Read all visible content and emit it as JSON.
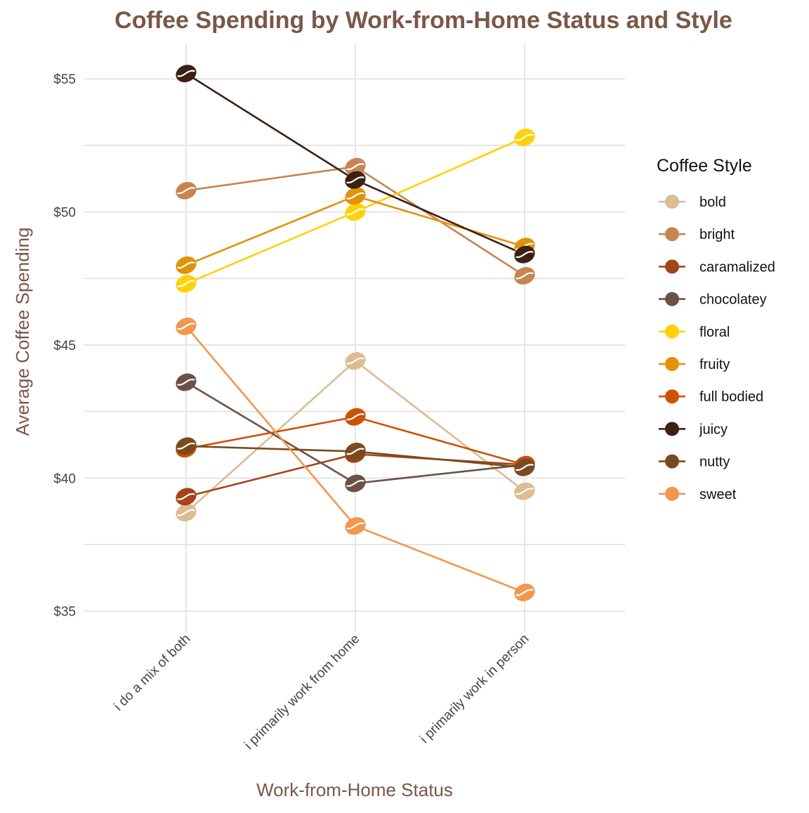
{
  "colors": {
    "title": "#7A5748",
    "axis_title": "#7A5748",
    "grid": "#E5E5E5",
    "bean_crease": "#FFFFFF"
  },
  "chart_data": {
    "type": "line",
    "title": "Coffee Spending by Work-from-Home Status and Style",
    "xlabel": "Work-from-Home Status",
    "ylabel": "Average Coffee Spending",
    "categories": [
      "i do a mix of both",
      "i primarily work from home",
      "i primarily work in person"
    ],
    "ylim": [
      34.2,
      56.3
    ],
    "y_ticks": [
      35,
      40,
      45,
      50,
      55
    ],
    "y_tick_labels": [
      "$35",
      "$40",
      "$45",
      "$50",
      "$55"
    ],
    "grid": true,
    "legend_title": "Coffee Style",
    "legend_position": "right",
    "marker": "coffee-bean",
    "series": [
      {
        "name": "bold",
        "color": "#DDBB93",
        "values": [
          38.7,
          44.4,
          39.5
        ]
      },
      {
        "name": "bright",
        "color": "#C68551",
        "values": [
          50.8,
          51.7,
          47.6
        ]
      },
      {
        "name": "caramalized",
        "color": "#A3441B",
        "values": [
          39.3,
          40.9,
          40.5
        ]
      },
      {
        "name": "chocolatey",
        "color": "#6C5147",
        "values": [
          43.6,
          39.8,
          40.5
        ]
      },
      {
        "name": "floral",
        "color": "#FFD106",
        "values": [
          47.3,
          50.0,
          52.8
        ]
      },
      {
        "name": "fruity",
        "color": "#E1920A",
        "values": [
          48.0,
          50.6,
          48.7
        ]
      },
      {
        "name": "full bodied",
        "color": "#CD5106",
        "values": [
          41.1,
          42.3,
          40.5
        ]
      },
      {
        "name": "juicy",
        "color": "#3D2015",
        "values": [
          55.2,
          51.2,
          48.4
        ]
      },
      {
        "name": "nutty",
        "color": "#7A4A1E",
        "values": [
          41.2,
          41.0,
          40.4
        ]
      },
      {
        "name": "sweet",
        "color": "#F2974F",
        "values": [
          45.7,
          38.2,
          35.7
        ]
      }
    ]
  }
}
